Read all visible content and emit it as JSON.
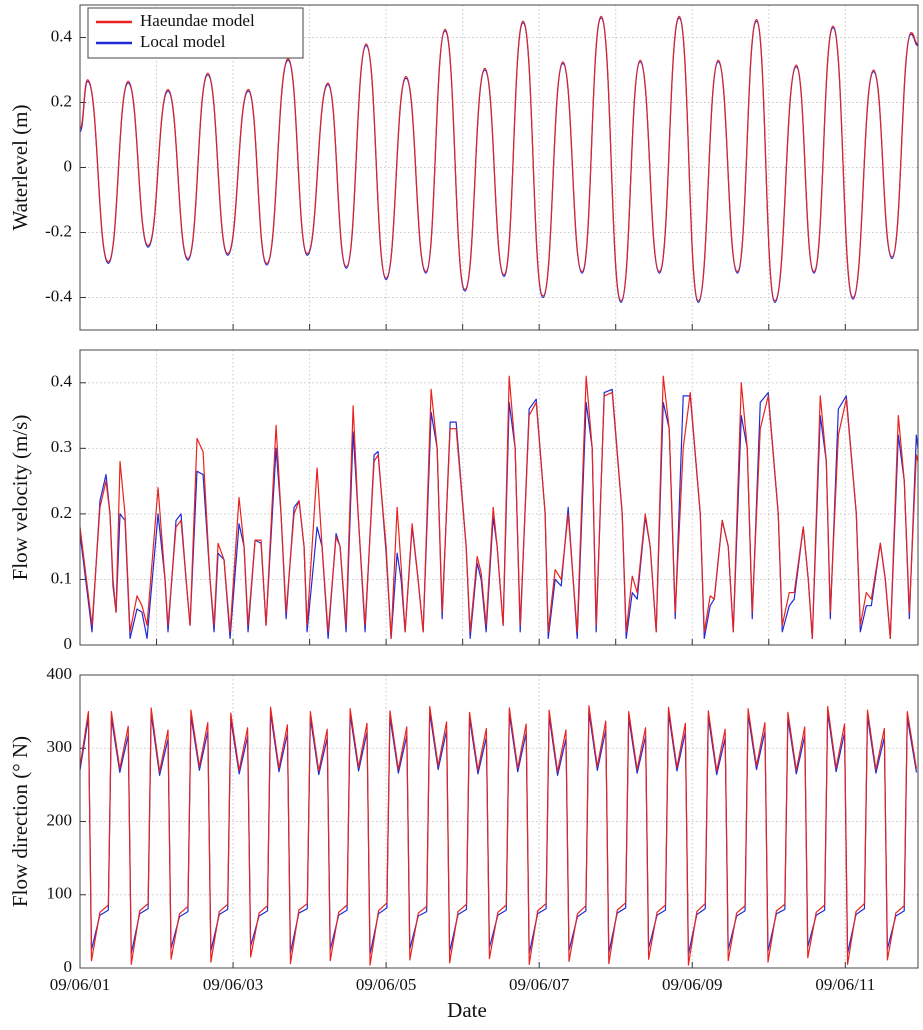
{
  "chart_data": [
    {
      "type": "line",
      "ylabel": "Waterlevel (m)",
      "smooth": true,
      "grid": true,
      "legend": "upper left",
      "xlim": [
        0,
        10.95
      ],
      "xticks": [
        0,
        1,
        2,
        3,
        4,
        5,
        6,
        7,
        8,
        9,
        10
      ],
      "ylim": [
        -0.5,
        0.5
      ],
      "yticks": [
        -0.4,
        -0.2,
        0,
        0.2,
        0.4
      ],
      "x": [
        0,
        0.1,
        0.37,
        0.63,
        0.89,
        1.15,
        1.41,
        1.67,
        1.93,
        2.2,
        2.44,
        2.72,
        2.97,
        3.24,
        3.48,
        3.74,
        4.0,
        4.26,
        4.52,
        4.77,
        5.03,
        5.29,
        5.54,
        5.79,
        6.05,
        6.31,
        6.56,
        6.81,
        7.07,
        7.32,
        7.57,
        7.83,
        8.08,
        8.34,
        8.59,
        8.84,
        9.08,
        9.36,
        9.59,
        9.84,
        10.1,
        10.37,
        10.61,
        10.86,
        10.95
      ],
      "series": [
        {
          "name": "Haeundae model",
          "color": "#e8231f",
          "values": [
            0.12,
            0.27,
            -0.29,
            0.265,
            -0.24,
            0.24,
            -0.28,
            0.29,
            -0.265,
            0.24,
            -0.295,
            0.335,
            -0.265,
            0.26,
            -0.305,
            0.38,
            -0.34,
            0.28,
            -0.32,
            0.425,
            -0.375,
            0.305,
            -0.33,
            0.45,
            -0.395,
            0.325,
            -0.32,
            0.465,
            -0.41,
            0.33,
            -0.32,
            0.465,
            -0.41,
            0.33,
            -0.32,
            0.455,
            -0.41,
            0.315,
            -0.32,
            0.435,
            -0.4,
            0.3,
            -0.275,
            0.415,
            0.38
          ]
        },
        {
          "name": "Local model",
          "color": "#1f2bd6",
          "values": [
            0.11,
            0.265,
            -0.295,
            0.26,
            -0.245,
            0.235,
            -0.285,
            0.285,
            -0.27,
            0.235,
            -0.3,
            0.33,
            -0.27,
            0.255,
            -0.31,
            0.375,
            -0.345,
            0.275,
            -0.325,
            0.42,
            -0.38,
            0.3,
            -0.335,
            0.445,
            -0.4,
            0.32,
            -0.325,
            0.46,
            -0.415,
            0.325,
            -0.325,
            0.46,
            -0.415,
            0.325,
            -0.325,
            0.45,
            -0.415,
            0.31,
            -0.325,
            0.43,
            -0.405,
            0.295,
            -0.28,
            0.41,
            0.375
          ]
        }
      ]
    },
    {
      "type": "line",
      "ylabel": "Flow velocity (m/s)",
      "smooth": false,
      "grid": true,
      "xlim": [
        0,
        10.95
      ],
      "xticks": [
        0,
        1,
        2,
        3,
        4,
        5,
        6,
        7,
        8,
        9,
        10
      ],
      "ylim": [
        0,
        0.45
      ],
      "yticks": [
        0,
        0.1,
        0.2,
        0.3,
        0.4
      ],
      "x": [
        0,
        0.105,
        0.157,
        0.261,
        0.34,
        0.392,
        0.431,
        0.471,
        0.523,
        0.588,
        0.654,
        0.745,
        0.81,
        0.876,
        1.02,
        1.111,
        1.15,
        1.255,
        1.32,
        1.386,
        1.438,
        1.529,
        1.608,
        1.699,
        1.752,
        1.804,
        1.882,
        1.961,
        2.078,
        2.144,
        2.196,
        2.288,
        2.366,
        2.431,
        2.562,
        2.627,
        2.693,
        2.797,
        2.863,
        2.928,
        2.967,
        3.098,
        3.163,
        3.242,
        3.346,
        3.399,
        3.477,
        3.569,
        3.634,
        3.725,
        3.843,
        3.895,
        4.0,
        4.065,
        4.144,
        4.196,
        4.248,
        4.34,
        4.418,
        4.484,
        4.588,
        4.667,
        4.732,
        4.837,
        4.915,
        5.046,
        5.098,
        5.19,
        5.242,
        5.307,
        5.399,
        5.451,
        5.529,
        5.608,
        5.686,
        5.752,
        5.869,
        5.961,
        6.078,
        6.118,
        6.209,
        6.288,
        6.379,
        6.444,
        6.497,
        6.614,
        6.693,
        6.745,
        6.85,
        6.954,
        7.085,
        7.137,
        7.216,
        7.281,
        7.386,
        7.451,
        7.529,
        7.621,
        7.699,
        7.778,
        7.882,
        7.974,
        8.105,
        8.157,
        8.235,
        8.288,
        8.392,
        8.471,
        8.536,
        8.641,
        8.719,
        8.784,
        8.889,
        8.993,
        9.124,
        9.176,
        9.268,
        9.333,
        9.451,
        9.516,
        9.569,
        9.673,
        9.752,
        9.804,
        9.909,
        10.013,
        10.144,
        10.196,
        10.275,
        10.34,
        10.458,
        10.523,
        10.588,
        10.693,
        10.771,
        10.837,
        10.928,
        10.95
      ],
      "series": [
        {
          "color": "#e8231f",
          "values": [
            0.18,
            0.08,
            0.03,
            0.21,
            0.25,
            0.2,
            0.1,
            0.05,
            0.28,
            0.2,
            0.02,
            0.075,
            0.06,
            0.03,
            0.24,
            0.1,
            0.03,
            0.18,
            0.19,
            0.1,
            0.03,
            0.315,
            0.295,
            0.1,
            0.03,
            0.155,
            0.13,
            0.02,
            0.225,
            0.15,
            0.03,
            0.16,
            0.16,
            0.03,
            0.335,
            0.2,
            0.05,
            0.2,
            0.22,
            0.15,
            0.03,
            0.27,
            0.15,
            0.02,
            0.165,
            0.15,
            0.03,
            0.365,
            0.2,
            0.03,
            0.28,
            0.29,
            0.15,
            0.01,
            0.21,
            0.12,
            0.02,
            0.185,
            0.1,
            0.02,
            0.39,
            0.3,
            0.05,
            0.33,
            0.33,
            0.15,
            0.02,
            0.135,
            0.11,
            0.03,
            0.21,
            0.15,
            0.03,
            0.41,
            0.3,
            0.03,
            0.35,
            0.37,
            0.2,
            0.02,
            0.115,
            0.1,
            0.2,
            0.1,
            0.02,
            0.41,
            0.3,
            0.03,
            0.38,
            0.385,
            0.2,
            0.02,
            0.105,
            0.08,
            0.2,
            0.15,
            0.02,
            0.41,
            0.33,
            0.05,
            0.3,
            0.385,
            0.2,
            0.02,
            0.075,
            0.07,
            0.19,
            0.15,
            0.02,
            0.4,
            0.3,
            0.05,
            0.33,
            0.38,
            0.2,
            0.03,
            0.08,
            0.08,
            0.18,
            0.1,
            0.01,
            0.38,
            0.28,
            0.05,
            0.32,
            0.375,
            0.2,
            0.03,
            0.08,
            0.07,
            0.155,
            0.1,
            0.01,
            0.35,
            0.25,
            0.05,
            0.29,
            0.28
          ]
        },
        {
          "color": "#1f2bd6",
          "values": [
            0.17,
            0.07,
            0.02,
            0.22,
            0.26,
            0.2,
            0.09,
            0.05,
            0.2,
            0.19,
            0.01,
            0.055,
            0.05,
            0.01,
            0.2,
            0.1,
            0.02,
            0.19,
            0.2,
            0.1,
            0.03,
            0.265,
            0.26,
            0.1,
            0.02,
            0.14,
            0.13,
            0.01,
            0.185,
            0.15,
            0.02,
            0.16,
            0.155,
            0.03,
            0.3,
            0.2,
            0.04,
            0.21,
            0.22,
            0.15,
            0.02,
            0.18,
            0.15,
            0.01,
            0.17,
            0.15,
            0.02,
            0.325,
            0.2,
            0.02,
            0.29,
            0.295,
            0.14,
            0.01,
            0.14,
            0.1,
            0.02,
            0.18,
            0.1,
            0.02,
            0.355,
            0.3,
            0.04,
            0.34,
            0.34,
            0.15,
            0.01,
            0.125,
            0.1,
            0.02,
            0.195,
            0.15,
            0.03,
            0.37,
            0.3,
            0.02,
            0.36,
            0.375,
            0.2,
            0.01,
            0.1,
            0.09,
            0.21,
            0.1,
            0.01,
            0.37,
            0.3,
            0.02,
            0.385,
            0.39,
            0.2,
            0.01,
            0.08,
            0.07,
            0.195,
            0.15,
            0.02,
            0.37,
            0.33,
            0.04,
            0.38,
            0.38,
            0.2,
            0.01,
            0.06,
            0.07,
            0.19,
            0.15,
            0.02,
            0.35,
            0.3,
            0.04,
            0.37,
            0.385,
            0.2,
            0.02,
            0.06,
            0.07,
            0.18,
            0.1,
            0.01,
            0.35,
            0.28,
            0.04,
            0.36,
            0.38,
            0.2,
            0.02,
            0.06,
            0.06,
            0.155,
            0.1,
            0.01,
            0.32,
            0.25,
            0.04,
            0.32,
            0.3
          ]
        }
      ]
    },
    {
      "type": "line",
      "ylabel": "Flow direction (° N)",
      "xlabel": "Date",
      "smooth": false,
      "grid": true,
      "xlim": [
        0,
        10.95
      ],
      "xticks": [
        {
          "value": 0,
          "label": "09/06/01"
        },
        {
          "value": 2,
          "label": "09/06/03"
        },
        {
          "value": 4,
          "label": "09/06/05"
        },
        {
          "value": 6,
          "label": "09/06/07"
        },
        {
          "value": 8,
          "label": "09/06/09"
        },
        {
          "value": 10,
          "label": "09/06/11"
        }
      ],
      "ylim": [
        0,
        400
      ],
      "yticks": [
        0,
        100,
        200,
        300,
        400
      ],
      "x": [
        0,
        0.11,
        0.15,
        0.26,
        0.37,
        0.41,
        0.52,
        0.63,
        0.67,
        0.78,
        0.89,
        0.93,
        1.04,
        1.15,
        1.19,
        1.3,
        1.41,
        1.45,
        1.56,
        1.67,
        1.71,
        1.82,
        1.93,
        1.97,
        2.08,
        2.19,
        2.23,
        2.34,
        2.45,
        2.49,
        2.6,
        2.71,
        2.75,
        2.86,
        2.97,
        3.01,
        3.12,
        3.23,
        3.27,
        3.38,
        3.49,
        3.53,
        3.64,
        3.75,
        3.79,
        3.9,
        4.01,
        4.05,
        4.16,
        4.27,
        4.31,
        4.42,
        4.53,
        4.57,
        4.68,
        4.79,
        4.83,
        4.94,
        5.05,
        5.09,
        5.2,
        5.31,
        5.35,
        5.46,
        5.57,
        5.61,
        5.72,
        5.83,
        5.87,
        5.98,
        6.09,
        6.13,
        6.24,
        6.35,
        6.39,
        6.5,
        6.61,
        6.65,
        6.76,
        6.87,
        6.91,
        7.02,
        7.13,
        7.17,
        7.28,
        7.39,
        7.43,
        7.54,
        7.65,
        7.69,
        7.8,
        7.91,
        7.95,
        8.06,
        8.17,
        8.21,
        8.32,
        8.43,
        8.47,
        8.58,
        8.69,
        8.73,
        8.84,
        8.95,
        8.99,
        9.1,
        9.21,
        9.25,
        9.36,
        9.47,
        9.51,
        9.62,
        9.73,
        9.77,
        9.88,
        9.99,
        10.03,
        10.14,
        10.25,
        10.29,
        10.4,
        10.51,
        10.55,
        10.66,
        10.77,
        10.81,
        10.93
      ],
      "series": [
        {
          "color": "#e8231f",
          "values": [
            275,
            350,
            10,
            76,
            86,
            350,
            272,
            330,
            5,
            78,
            88,
            355,
            268,
            325,
            12,
            74,
            84,
            352,
            275,
            335,
            8,
            77,
            87,
            348,
            270,
            328,
            15,
            75,
            85,
            356,
            273,
            332,
            6,
            79,
            88,
            350,
            269,
            326,
            10,
            76,
            86,
            354,
            274,
            334,
            4,
            78,
            89,
            351,
            271,
            329,
            11,
            75,
            84,
            357,
            276,
            336,
            7,
            77,
            87,
            349,
            270,
            327,
            13,
            76,
            86,
            355,
            273,
            333,
            5,
            78,
            88,
            352,
            268,
            325,
            9,
            74,
            85,
            358,
            275,
            337,
            6,
            79,
            89,
            350,
            271,
            328,
            12,
            76,
            86,
            356,
            274,
            334,
            4,
            77,
            88,
            351,
            269,
            326,
            10,
            75,
            85,
            354,
            276,
            335,
            8,
            78,
            87,
            349,
            270,
            329,
            14,
            76,
            86,
            357,
            273,
            333,
            5,
            77,
            88,
            352,
            271,
            327,
            11,
            75,
            85,
            350,
            272
          ]
        },
        {
          "color": "#1f2bd6",
          "values": [
            270,
            342,
            25,
            72,
            79,
            342,
            267,
            318,
            20,
            74,
            81,
            347,
            263,
            313,
            27,
            70,
            77,
            344,
            270,
            323,
            23,
            73,
            80,
            340,
            265,
            316,
            30,
            71,
            78,
            348,
            268,
            320,
            21,
            75,
            81,
            342,
            264,
            314,
            25,
            72,
            79,
            346,
            269,
            322,
            19,
            74,
            82,
            343,
            266,
            317,
            26,
            71,
            77,
            349,
            271,
            324,
            22,
            73,
            80,
            341,
            265,
            315,
            28,
            72,
            79,
            347,
            268,
            321,
            20,
            74,
            81,
            344,
            263,
            313,
            24,
            70,
            78,
            350,
            270,
            325,
            21,
            75,
            82,
            342,
            266,
            316,
            27,
            72,
            79,
            348,
            269,
            322,
            19,
            73,
            81,
            343,
            264,
            314,
            25,
            71,
            78,
            346,
            271,
            323,
            23,
            74,
            80,
            341,
            265,
            317,
            29,
            72,
            79,
            349,
            268,
            321,
            20,
            73,
            81,
            344,
            266,
            315,
            26,
            71,
            78,
            342,
            267
          ]
        }
      ]
    }
  ]
}
